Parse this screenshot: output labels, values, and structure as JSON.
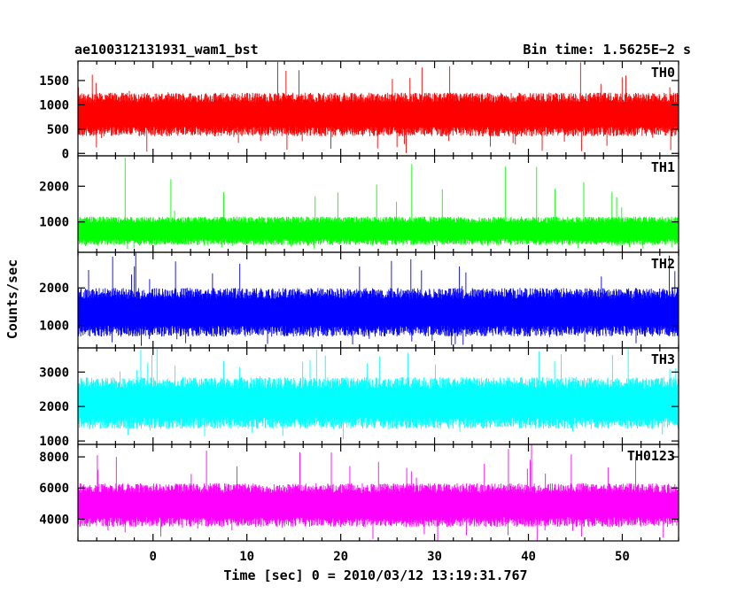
{
  "chart_data": {
    "type": "line",
    "title_left": "ae100312131931_wam1_bst",
    "title_right": "Bin time: 1.5625E−2 s",
    "xlabel": "Time [sec] 0 = 2010/03/12 13:19:31.767",
    "ylabel": "Counts/sec",
    "xlim": [
      -8,
      56
    ],
    "x_ticks": [
      0,
      10,
      20,
      30,
      40,
      50
    ],
    "x_start": -8,
    "x_end": 56,
    "grid": false,
    "panels": [
      {
        "name": "TH0",
        "color": "#ff0000",
        "ylim": [
          -50,
          1900
        ],
        "y_ticks": [
          0,
          500,
          1000,
          1500
        ],
        "low": 350,
        "high": 1250,
        "spike": 1900,
        "dip": 0,
        "mean": 800
      },
      {
        "name": "TH1",
        "color": "#00ff00",
        "ylim": [
          150,
          2850
        ],
        "y_ticks": [
          1000,
          2000
        ],
        "low": 350,
        "high": 1150,
        "spike": 2900,
        "dip": 250,
        "mean": 750
      },
      {
        "name": "TH2",
        "color": "#0000ff",
        "ylim": [
          400,
          2950
        ],
        "y_ticks": [
          1000,
          2000
        ],
        "low": 700,
        "high": 2000,
        "spike": 2950,
        "dip": 450,
        "mean": 1350
      },
      {
        "name": "TH3",
        "color": "#00ffff",
        "ylim": [
          900,
          3700
        ],
        "y_ticks": [
          1000,
          2000,
          3000
        ],
        "low": 1350,
        "high": 2850,
        "spike": 3700,
        "dip": 1000,
        "mean": 2100
      },
      {
        "name": "TH0123",
        "color": "#ff00ff",
        "ylim": [
          2600,
          8800
        ],
        "y_ticks": [
          4000,
          6000,
          8000
        ],
        "low": 3500,
        "high": 6300,
        "spike": 8800,
        "dip": 2600,
        "mean": 4900
      }
    ]
  }
}
